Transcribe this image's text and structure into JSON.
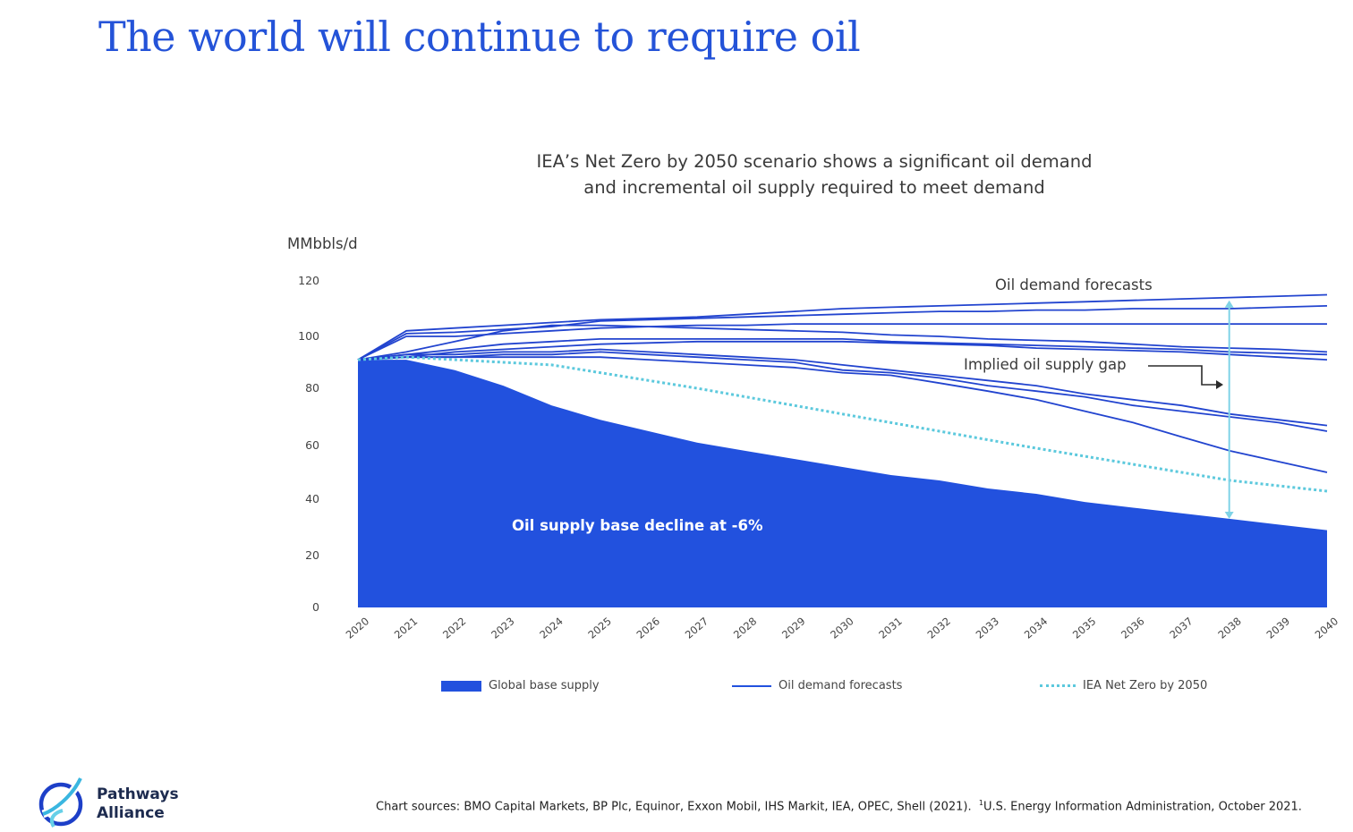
{
  "slide": {
    "title": "The world will continue to require oil"
  },
  "chart_heading": {
    "line1": "IEA’s Net Zero by 2050 scenario shows a significant oil demand",
    "line2": "and incremental oil supply required to meet demand"
  },
  "chart_data": {
    "type": "area",
    "ylabel": "MMbbls/d",
    "ylim": [
      0,
      120
    ],
    "y_ticks": [
      "120",
      "100",
      "80",
      "60",
      "40",
      "20",
      "0"
    ],
    "x": [
      "2020",
      "2021",
      "2022",
      "2023",
      "2024",
      "2025",
      "2026",
      "2027",
      "2028",
      "2029",
      "2030",
      "2031",
      "2032",
      "2033",
      "2034",
      "2035",
      "2036",
      "2037",
      "2038",
      "2039",
      "2040"
    ],
    "base_supply": {
      "name": "Global base supply",
      "values": [
        91,
        91,
        87,
        81,
        74,
        69,
        65,
        61,
        58,
        55,
        52,
        49,
        47,
        44,
        42,
        39,
        37,
        35,
        33,
        31,
        29
      ]
    },
    "net_zero": {
      "name": "IEA Net Zero by 2050",
      "values": [
        91,
        92,
        91,
        90,
        89,
        86,
        83,
        80,
        77,
        74,
        71,
        68,
        65,
        62,
        59,
        56,
        53,
        50,
        47,
        45,
        43
      ]
    },
    "demand_forecasts_name": "Oil demand forecasts",
    "demand_forecasts": [
      [
        91,
        102,
        103,
        104,
        105,
        106,
        106.5,
        107,
        108,
        109,
        110,
        110.5,
        111,
        111.5,
        112,
        112.5,
        113,
        113.5,
        114,
        114.5,
        115
      ],
      [
        91,
        101,
        101.5,
        102.5,
        103.5,
        105.5,
        106,
        106.5,
        107,
        107.5,
        108,
        108.5,
        109,
        109,
        109.5,
        109.5,
        110,
        110,
        110,
        110.5,
        111
      ],
      [
        91,
        100,
        100,
        101,
        102,
        103,
        103.5,
        104,
        104,
        104.5,
        104.5,
        104.5,
        104.5,
        104.5,
        104.5,
        104.5,
        104.5,
        104.5,
        104.5,
        104.5,
        104.5
      ],
      [
        91,
        94,
        98,
        102,
        104,
        104,
        103.5,
        103,
        102.5,
        102,
        101.5,
        100.5,
        100,
        99,
        98.5,
        98,
        97,
        96,
        95.5,
        95,
        94
      ],
      [
        91,
        93,
        95,
        97,
        98,
        99,
        99,
        99,
        99,
        99,
        99,
        98,
        97.5,
        97,
        96.5,
        96,
        95.5,
        95,
        94,
        93.5,
        93
      ],
      [
        91,
        92,
        94,
        95,
        96,
        97,
        97.5,
        98,
        98,
        98,
        98,
        97.5,
        97,
        96.5,
        95.5,
        95,
        94.5,
        94,
        93,
        92,
        91
      ],
      [
        91,
        93,
        93,
        94,
        94,
        95,
        94,
        93,
        92,
        91,
        89,
        87,
        85,
        83,
        81,
        78,
        76,
        74,
        71,
        69,
        67
      ],
      [
        91,
        92,
        92,
        93,
        93,
        94,
        93,
        92,
        91,
        90,
        87,
        86,
        84,
        81,
        79,
        77,
        74,
        72,
        70,
        68,
        65
      ],
      [
        91,
        92,
        92,
        92,
        92,
        92,
        91,
        90,
        89,
        88,
        86,
        85,
        82,
        79,
        76,
        72,
        68,
        63,
        58,
        54,
        50
      ]
    ],
    "annotations": {
      "demand": "Oil demand forecasts",
      "gap": "Implied oil supply gap",
      "decline": "Oil supply base decline at -6%"
    },
    "gap_arrow": {
      "x": "2038",
      "from": 33,
      "to": 113
    },
    "colors": {
      "base": "#2251de",
      "demand": "#2244cf",
      "netzero": "#5cc9dd",
      "gap_arrow": "#7fd3e6"
    },
    "legend_position": "bottom"
  },
  "legend": {
    "base": "Global base supply",
    "demand": "Oil demand forecasts",
    "netzero": "IEA Net Zero by 2050"
  },
  "footer": {
    "logo_line1": "Pathways",
    "logo_line2": "Alliance",
    "sources_main": "Chart sources: BMO Capital Markets, BP Plc, Equinor, Exxon Mobil, IHS Markit, IEA, OPEC, Shell (2021).",
    "sources_sup": "1",
    "sources_note": "U.S. Energy Information Administration, October 2021."
  }
}
